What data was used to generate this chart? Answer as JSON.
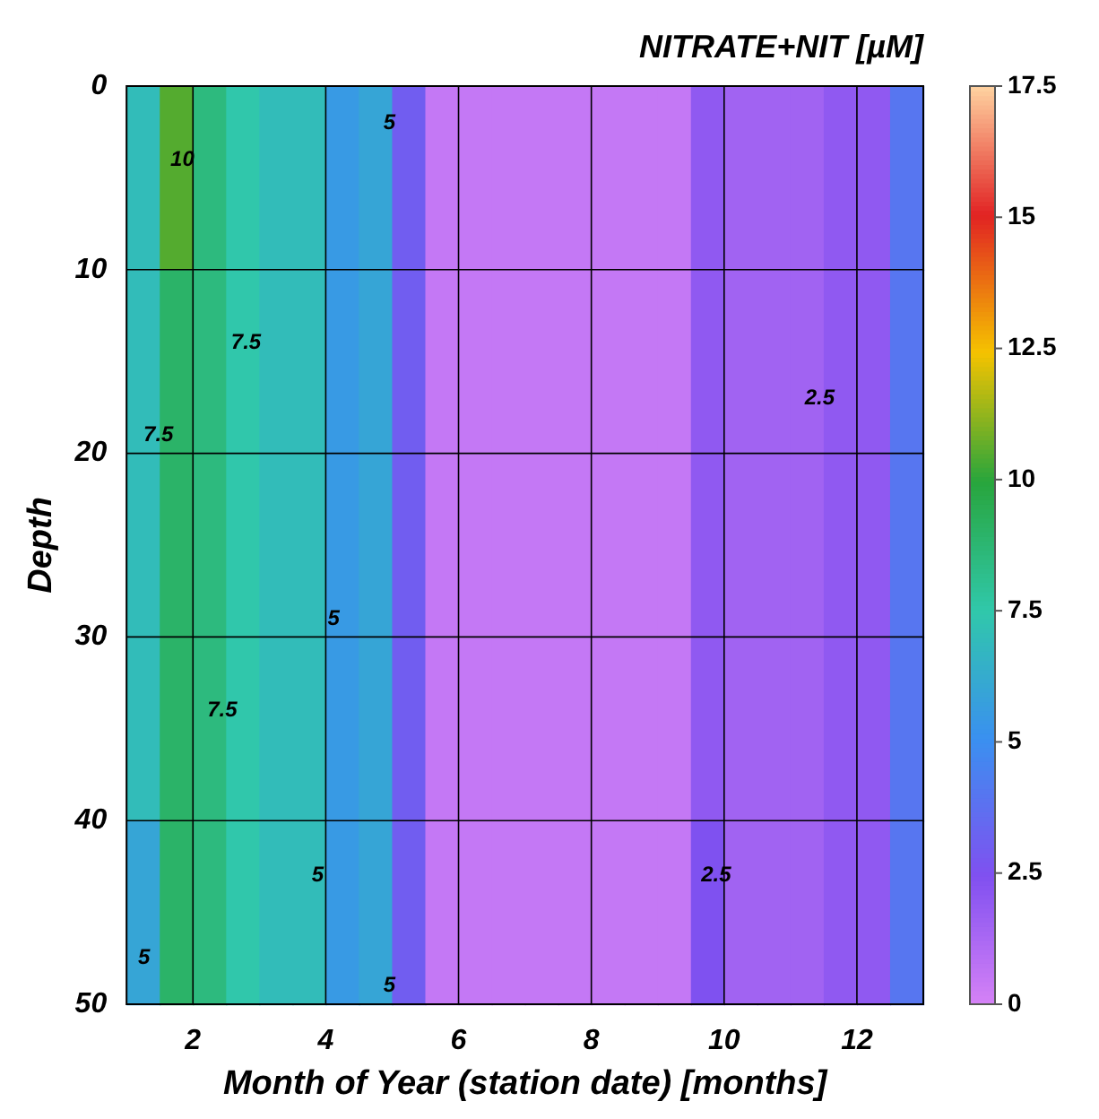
{
  "chart_data": {
    "type": "heatmap",
    "title": "NITRATE+NIT [µM]",
    "xlabel": "Month of Year (station date) [months]",
    "ylabel": "Depth",
    "x": [
      1.25,
      1.75,
      2.25,
      2.75,
      3.25,
      3.75,
      4.25,
      4.75,
      5.25,
      5.75,
      6.25,
      6.75,
      7.25,
      7.75,
      8.25,
      8.75,
      9.25,
      9.75,
      10.25,
      10.75,
      11.25,
      11.75,
      12.25,
      12.75
    ],
    "cells": [
      [
        7,
        10.5,
        8.5,
        7.5,
        7,
        7,
        5.5,
        6,
        3,
        0.5,
        0.5,
        0.5,
        0.5,
        0.5,
        0.5,
        0.5,
        0.5,
        2,
        1.5,
        1.5,
        1.5,
        2,
        2,
        4
      ],
      [
        7,
        9,
        8.5,
        7.5,
        7,
        7,
        5.5,
        6,
        3,
        0.5,
        0.5,
        0.5,
        0.5,
        0.5,
        0.5,
        0.5,
        0.5,
        2,
        1.5,
        1.5,
        1.5,
        2,
        2,
        4
      ],
      [
        7,
        9,
        8.5,
        7.5,
        7,
        7,
        5.5,
        6,
        3,
        0.5,
        0.5,
        0.5,
        0.5,
        0.5,
        0.5,
        0.5,
        0.5,
        2,
        1.5,
        1.5,
        1.5,
        2,
        2,
        4
      ],
      [
        7,
        9,
        8.5,
        7.5,
        7,
        7,
        5.5,
        6,
        3,
        0.5,
        0.5,
        0.5,
        0.5,
        0.5,
        0.5,
        0.5,
        0.5,
        2,
        1.5,
        1.5,
        1.5,
        2,
        2,
        4
      ],
      [
        6,
        9,
        8.5,
        7.5,
        7,
        7,
        5.5,
        6,
        3,
        0.5,
        0.5,
        0.5,
        0.5,
        0.5,
        0.5,
        0.5,
        0.5,
        2.5,
        1.5,
        1.5,
        1.5,
        2,
        2,
        4
      ]
    ],
    "xlim": [
      1,
      13
    ],
    "xticks": [
      2,
      4,
      6,
      8,
      10,
      12
    ],
    "ylim": [
      50,
      0
    ],
    "yticks": [
      0,
      10,
      20,
      30,
      40,
      50
    ],
    "clim": [
      0,
      17.5
    ],
    "cticks": [
      0,
      2.5,
      5,
      7.5,
      10,
      12.5,
      15,
      17.5
    ],
    "grid": true,
    "annotations": [
      "10",
      "7.5",
      "7.5",
      "7.5",
      "5",
      "5",
      "5",
      "5",
      "5",
      "2.5",
      "2.5"
    ]
  }
}
